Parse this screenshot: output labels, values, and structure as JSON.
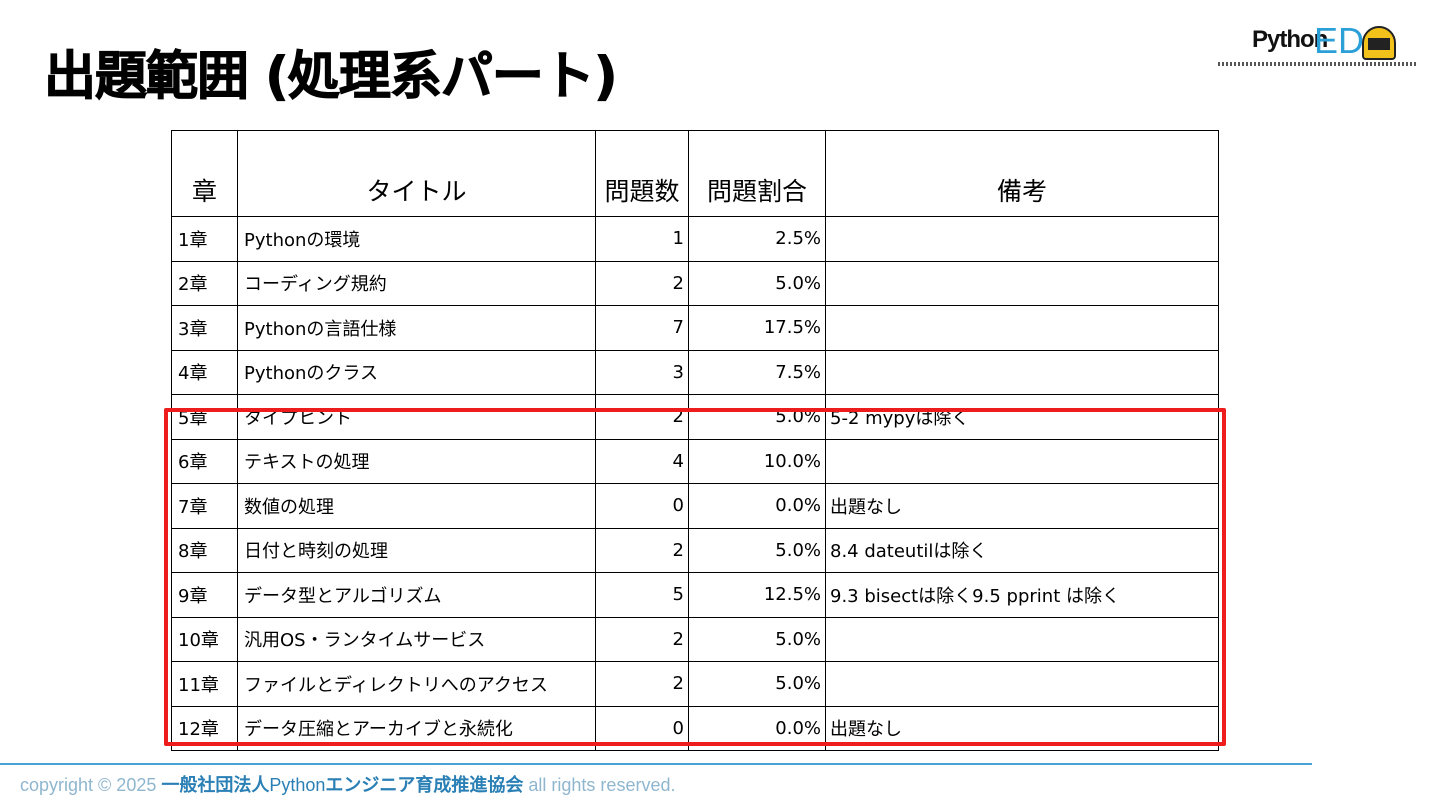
{
  "title": "出題範囲 (処理系パート)",
  "logo": {
    "text1": "Python",
    "text2": "ED"
  },
  "table": {
    "headers": [
      "章",
      "タイトル",
      "問題数",
      "問題割合",
      "備考"
    ],
    "rows": [
      {
        "chapter": "1章",
        "title": "Pythonの環境",
        "count": "1",
        "ratio": "2.5%",
        "note": ""
      },
      {
        "chapter": "2章",
        "title": "コーディング規約",
        "count": "2",
        "ratio": "5.0%",
        "note": ""
      },
      {
        "chapter": "3章",
        "title": "Pythonの言語仕様",
        "count": "7",
        "ratio": "17.5%",
        "note": ""
      },
      {
        "chapter": "4章",
        "title": "Pythonのクラス",
        "count": "3",
        "ratio": "7.5%",
        "note": ""
      },
      {
        "chapter": "5章",
        "title": "タイプヒント",
        "count": "2",
        "ratio": "5.0%",
        "note": "5-2 mypyは除く"
      },
      {
        "chapter": "6章",
        "title": "テキストの処理",
        "count": "4",
        "ratio": "10.0%",
        "note": ""
      },
      {
        "chapter": "7章",
        "title": "数値の処理",
        "count": "0",
        "ratio": "0.0%",
        "note": "出題なし"
      },
      {
        "chapter": "8章",
        "title": "日付と時刻の処理",
        "count": "2",
        "ratio": "5.0%",
        "note": "8.4 dateutilは除く"
      },
      {
        "chapter": "9章",
        "title": "データ型とアルゴリズム",
        "count": "5",
        "ratio": "12.5%",
        "note": "9.3 bisectは除く9.5 pprint は除く"
      },
      {
        "chapter": "10章",
        "title": "汎用OS・ランタイムサービス",
        "count": "2",
        "ratio": "5.0%",
        "note": ""
      },
      {
        "chapter": "11章",
        "title": "ファイルとディレクトリへのアクセス",
        "count": "2",
        "ratio": "5.0%",
        "note": ""
      },
      {
        "chapter": "12章",
        "title": "データ圧縮とアーカイブと永続化",
        "count": "0",
        "ratio": "0.0%",
        "note": "出題なし"
      }
    ]
  },
  "footer": {
    "prefix": "copyright © 2025 ",
    "org_a": "一般社団法人",
    "org_py": "Python",
    "org_b": "エンジニア育成推進協会",
    "suffix": " all rights reserved."
  },
  "colors": {
    "highlight": "#ee1c1c",
    "accent": "#2a9fd8"
  }
}
